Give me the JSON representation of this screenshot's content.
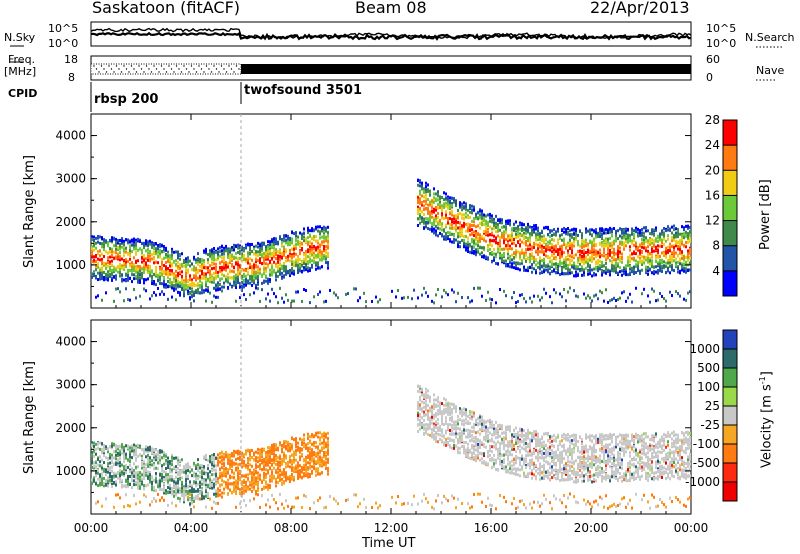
{
  "header": {
    "title": "Saskatoon (fitACF)",
    "beam": "Beam 08",
    "date": "22/Apr/2013"
  },
  "top_panel": {
    "nsky_label": "N.Sky",
    "nsearch_label": "N.Search",
    "noise_ticks": [
      "10^5",
      "10^0"
    ],
    "freq_label_1": "Freq.",
    "freq_label_2": "[MHz]",
    "freq_ticks": [
      "18",
      "8"
    ],
    "nave_label": "Nave",
    "nave_ticks": [
      "60",
      "0"
    ],
    "cpid_label": "CPID",
    "cpid_1": "rbsp 200",
    "cpid_2": "twofsound 3501"
  },
  "chart_data": [
    {
      "type": "heatmap",
      "title": "",
      "xlabel": "",
      "ylabel": "Slant Range [km]",
      "ylim": [
        0,
        4500
      ],
      "yticks": [
        "1000",
        "2000",
        "3000",
        "4000"
      ],
      "colorbar_label": "Power [dB]",
      "colorbar_ticks": [
        "4",
        "8",
        "12",
        "16",
        "20",
        "24",
        "28"
      ],
      "colors": [
        "#0000ff",
        "#2255a8",
        "#3f8a4a",
        "#6cc93a",
        "#f2cc14",
        "#ff7a10",
        "#ff0000"
      ],
      "series": [
        {
          "x": [
            0.0,
            0.5,
            1.0,
            1.5,
            2.0,
            2.5,
            3.0,
            3.5,
            4.0,
            4.5,
            5.0,
            5.5,
            6.0,
            6.5,
            7.0,
            7.5,
            8.0,
            8.5,
            9.0,
            9.5
          ],
          "y": [
            1200,
            1180,
            1160,
            1150,
            1120,
            1080,
            980,
            850,
            700,
            900,
            950,
            1000,
            1000,
            1050,
            1100,
            1200,
            1300,
            1380,
            1420,
            1460
          ]
        },
        {
          "x": [
            13.0,
            13.5,
            14.0,
            14.5,
            15.0,
            15.5,
            16.0,
            16.5,
            17.0,
            17.5,
            18.0,
            18.5,
            19.0,
            19.5,
            20.0,
            20.5,
            21.0,
            21.5,
            22.0,
            22.5,
            23.0,
            23.5,
            24.0
          ],
          "y": [
            2500,
            2350,
            2200,
            2050,
            1900,
            1780,
            1650,
            1550,
            1480,
            1420,
            1380,
            1350,
            1330,
            1320,
            1320,
            1330,
            1340,
            1350,
            1360,
            1370,
            1380,
            1390,
            1400
          ]
        }
      ]
    },
    {
      "type": "heatmap",
      "title": "",
      "xlabel": "Time UT",
      "ylabel": "Slant Range [km]",
      "ylim": [
        0,
        4500
      ],
      "yticks": [
        "1000",
        "2000",
        "3000",
        "4000"
      ],
      "xticks": [
        "00:00",
        "04:00",
        "08:00",
        "12:00",
        "16:00",
        "20:00",
        "00:00"
      ],
      "x_range_hours": [
        0,
        24
      ],
      "colorbar_label": "Velocity [m s",
      "colorbar_sup": "-1",
      "colorbar_ticks": [
        "1000",
        "500",
        "100",
        "25",
        "-25",
        "-100",
        "-500",
        "-1000"
      ],
      "colors": [
        "#2244bb",
        "#2d6a6a",
        "#4fa84a",
        "#9ad94a",
        "#c8c8c8",
        "#f5a623",
        "#ff7a10",
        "#ff2b10",
        "#ee0000"
      ]
    }
  ]
}
